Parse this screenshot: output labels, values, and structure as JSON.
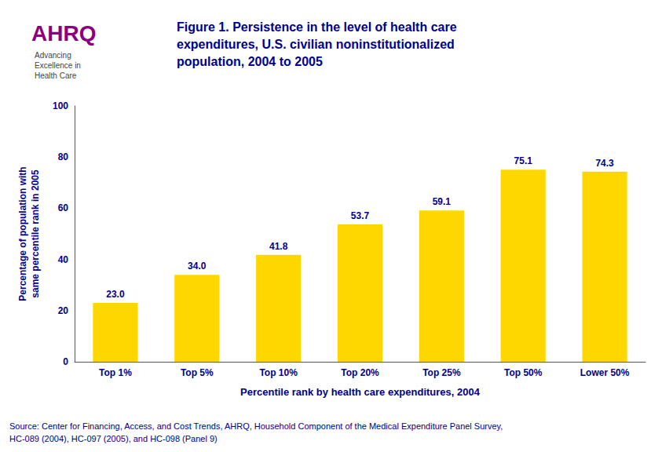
{
  "chart_data": {
    "type": "bar",
    "title": "Figure 1. Persistence in the level of health care\nexpenditures, U.S. civilian noninstitutionalized\npopulation, 2004 to 2005",
    "xlabel": "Percentile rank by health care expenditures, 2004",
    "ylabel": "Percentage of population with\nsame percentile rank in 2005",
    "categories": [
      "Top 1%",
      "Top 5%",
      "Top 10%",
      "Top 20%",
      "Top 25%",
      "Top 50%",
      "Lower 50%"
    ],
    "values": [
      23.0,
      34.0,
      41.8,
      53.7,
      59.1,
      75.1,
      74.3
    ],
    "value_labels": [
      "23.0",
      "34.0",
      "41.8",
      "53.7",
      "59.1",
      "75.1",
      "74.3"
    ],
    "color": "#FFD700",
    "ylim": [
      0,
      100
    ],
    "yticks": [
      0,
      20,
      40,
      60,
      80,
      100
    ],
    "grid": false,
    "data_labels": true,
    "annotations": [
      "AHRQ",
      "Advancing\nExcellence in\nHealth Care",
      "Source: Center for Financing, Access, and Cost Trends, AHRQ, Household Component of the Medical Expenditure Panel Survey,",
      "HC-089 (2004), HC-097 (2005), and HC-098 (Panel 9)"
    ]
  }
}
